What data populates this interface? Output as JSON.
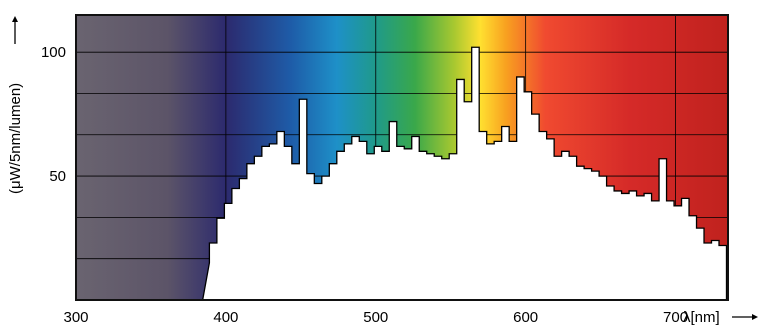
{
  "chart_data": {
    "type": "area",
    "title": "",
    "xlabel": "λ[nm]",
    "ylabel": "(μW/5nm/lumen)",
    "xlim": [
      300,
      735
    ],
    "ylim": [
      0,
      115
    ],
    "x_ticks": [
      "300",
      "400",
      "500",
      "600",
      "700"
    ],
    "y_ticks": [
      "50",
      "100"
    ],
    "grid": true,
    "fill_color": "#ffffff",
    "background": "visible-spectrum gradient",
    "series": [
      {
        "x": [
          384.5,
          389,
          389,
          394,
          394,
          399,
          399,
          404,
          404,
          409,
          409,
          414,
          414,
          419,
          419,
          424,
          424,
          429,
          429,
          434,
          434,
          439,
          439,
          444,
          444,
          449,
          449,
          454,
          454,
          459,
          459,
          464,
          464,
          469,
          469,
          474,
          474,
          479,
          479,
          484,
          484,
          489,
          489,
          494,
          494,
          499,
          499,
          504,
          504,
          509,
          509,
          514,
          514,
          519,
          519,
          524,
          524,
          529,
          529,
          534,
          534,
          539,
          539,
          544,
          544,
          549,
          549,
          554,
          554,
          559,
          559,
          564,
          564,
          569,
          569,
          574,
          574,
          579,
          579,
          584,
          584,
          589,
          589,
          594,
          594,
          599,
          599,
          604,
          604,
          609,
          609,
          614,
          614,
          619,
          619,
          624,
          624,
          629,
          629,
          634,
          634,
          639,
          639,
          644,
          644,
          649,
          649,
          654,
          654,
          659,
          659,
          664,
          664,
          669,
          669,
          674,
          674,
          679,
          679,
          684,
          684,
          689,
          689,
          694,
          694,
          699,
          699,
          704,
          704,
          709,
          709,
          714,
          714,
          719,
          719,
          724,
          724,
          729,
          729,
          734,
          734
        ],
        "y": [
          0,
          15,
          23,
          23,
          33,
          33,
          39,
          39,
          45,
          45,
          49,
          49,
          55,
          55,
          58,
          58,
          62,
          62,
          63,
          63,
          68,
          68,
          62,
          62,
          55,
          55,
          81,
          81,
          51,
          51,
          47,
          47,
          50,
          50,
          55,
          55,
          60,
          60,
          63,
          63,
          66,
          66,
          64,
          64,
          59,
          59,
          62,
          62,
          60,
          60,
          72,
          72,
          62,
          62,
          61,
          61,
          66,
          66,
          60,
          60,
          59,
          59,
          58,
          58,
          57,
          57,
          59,
          59,
          89,
          89,
          80,
          80,
          102,
          102,
          68,
          68,
          63,
          63,
          64,
          64,
          70,
          70,
          64,
          64,
          90,
          90,
          84,
          84,
          75,
          75,
          68,
          68,
          65,
          65,
          58,
          58,
          60,
          60,
          58,
          58,
          54,
          54,
          53,
          53,
          52,
          52,
          50,
          50,
          46,
          46,
          44,
          44,
          43,
          43,
          44,
          44,
          42,
          42,
          43,
          43,
          40,
          40,
          57,
          57,
          40,
          40,
          38,
          38,
          41,
          41,
          34,
          34,
          29,
          29,
          23,
          23,
          24,
          24,
          22,
          22,
          0
        ]
      }
    ]
  }
}
